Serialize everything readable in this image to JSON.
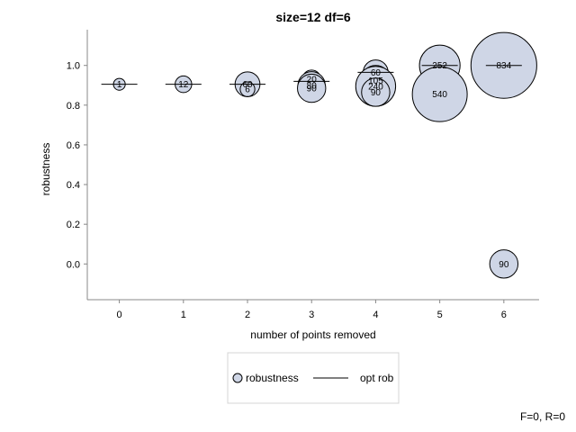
{
  "chart_data": {
    "type": "scatter",
    "title": "size=12 df=6",
    "xlabel": "number of points removed",
    "ylabel": "robustness",
    "xlim": [
      -0.5,
      6.55
    ],
    "ylim": [
      -0.18,
      1.18
    ],
    "x_ticks": [
      "0",
      "1",
      "2",
      "3",
      "4",
      "5",
      "6"
    ],
    "y_ticks": [
      "0.0",
      "0.2",
      "0.4",
      "0.6",
      "0.8",
      "1.0"
    ],
    "grid": false,
    "legend_position": "bottom-center",
    "series": [
      {
        "name": "robustness",
        "marker": "circle",
        "fill_color": "#cfd6e6",
        "points": [
          {
            "x": 0,
            "y": 0.905,
            "label": "1",
            "count": 1
          },
          {
            "x": 1,
            "y": 0.905,
            "label": "12",
            "count": 12
          },
          {
            "x": 2,
            "y": 0.905,
            "label": "60",
            "count": 60
          },
          {
            "x": 2,
            "y": 0.88,
            "label": "6",
            "count": 6
          },
          {
            "x": 3,
            "y": 0.93,
            "label": "20",
            "count": 20
          },
          {
            "x": 3,
            "y": 0.9,
            "label": "80",
            "count": 80
          },
          {
            "x": 3,
            "y": 0.885,
            "label": "90",
            "count": 90
          },
          {
            "x": 4,
            "y": 0.965,
            "label": "60",
            "count": 60
          },
          {
            "x": 4,
            "y": 0.925,
            "label": "105",
            "count": 105
          },
          {
            "x": 4,
            "y": 0.895,
            "label": "240",
            "count": 240
          },
          {
            "x": 4,
            "y": 0.865,
            "label": "90",
            "count": 90
          },
          {
            "x": 5,
            "y": 1.0,
            "label": "252",
            "count": 252
          },
          {
            "x": 5,
            "y": 0.855,
            "label": "540",
            "count": 540
          },
          {
            "x": 6,
            "y": 1.0,
            "label": "834",
            "count": 834
          },
          {
            "x": 6,
            "y": 0.0,
            "label": "90",
            "count": 90
          }
        ]
      },
      {
        "name": "opt rob",
        "marker": "line",
        "line_color": "#000000",
        "points": [
          {
            "x": 0,
            "y": 0.905
          },
          {
            "x": 1,
            "y": 0.905
          },
          {
            "x": 2,
            "y": 0.905
          },
          {
            "x": 3,
            "y": 0.92
          },
          {
            "x": 4,
            "y": 0.965
          },
          {
            "x": 5,
            "y": 1.0
          },
          {
            "x": 6,
            "y": 1.0
          }
        ]
      }
    ],
    "legend": [
      {
        "label": "robustness",
        "marker": "circle"
      },
      {
        "label": "opt rob",
        "marker": "line"
      }
    ],
    "footnote": "F=0, R=0"
  }
}
